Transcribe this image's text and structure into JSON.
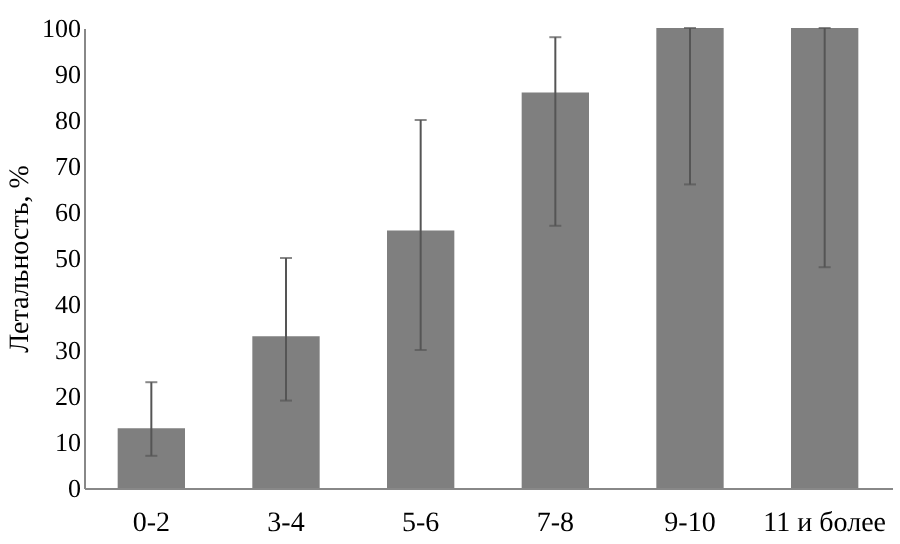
{
  "chart_data": {
    "type": "bar",
    "ylabel": "Летальность, %",
    "categories": [
      "0-2",
      "3-4",
      "5-6",
      "7-8",
      "9-10",
      "11 и более"
    ],
    "values": [
      13,
      33,
      56,
      86,
      100,
      100
    ],
    "errors": [
      [
        7,
        23
      ],
      [
        19,
        50
      ],
      [
        30,
        80
      ],
      [
        57,
        98
      ],
      [
        66,
        100
      ],
      [
        48,
        100
      ]
    ],
    "color": "#7f7f7f",
    "ylim": [
      0,
      100
    ],
    "yticks": [
      0,
      10,
      20,
      30,
      40,
      50,
      60,
      70,
      80,
      90,
      100
    ],
    "grid": false
  }
}
